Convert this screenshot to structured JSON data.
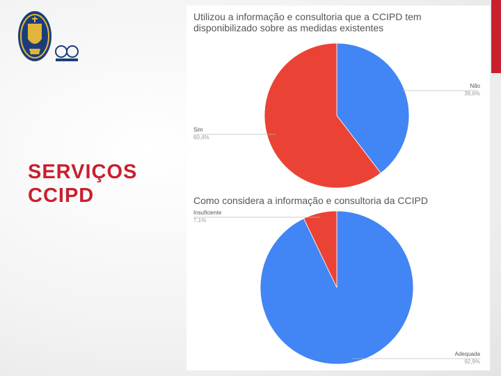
{
  "slide": {
    "title_lines": [
      "SERVIÇOS",
      "CCIPD"
    ],
    "accent_color": "#c8202f"
  },
  "logo": {
    "icon": "coat-of-arms-seal"
  },
  "chart_data": [
    {
      "type": "pie",
      "title": "Utilizou a informação e consultoria que a CCIPD tem disponibilizado sobre as medidas existentes",
      "slices": [
        {
          "label": "Não",
          "value": 39.6,
          "value_label": "39,6%",
          "color": "#4285f4"
        },
        {
          "label": "Sim",
          "value": 60.4,
          "value_label": "60,4%",
          "color": "#ea4335"
        }
      ]
    },
    {
      "type": "pie",
      "title": "Como considera a informação e consultoria da CCIPD",
      "slices": [
        {
          "label": "Adequada",
          "value": 92.9,
          "value_label": "92,9%",
          "color": "#4285f4"
        },
        {
          "label": "Insuficiente",
          "value": 7.1,
          "value_label": "7,1%",
          "color": "#ea4335"
        }
      ]
    }
  ]
}
